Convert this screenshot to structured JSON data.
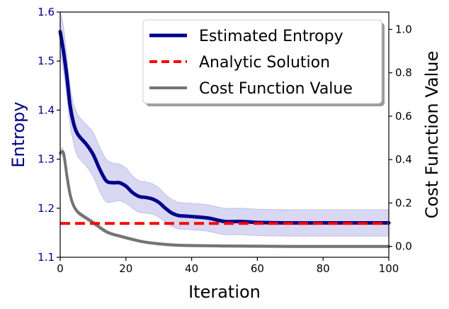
{
  "chart_data": {
    "type": "line",
    "xlabel": "Iteration",
    "ylabel_left": "Entropy",
    "ylabel_right": "Cost Function Value",
    "xlim": [
      0,
      100
    ],
    "ylim_left": [
      1.1,
      1.6
    ],
    "ylim_right": [
      -0.05,
      1.08
    ],
    "x_ticks": [
      0,
      20,
      40,
      60,
      80,
      100
    ],
    "y_left_ticks": [
      1.1,
      1.2,
      1.3,
      1.4,
      1.5,
      1.6
    ],
    "y_right_ticks": [
      0.0,
      0.2,
      0.4,
      0.6,
      0.8,
      1.0
    ],
    "legend_location": "top-right",
    "colors": {
      "entropy": "#00008b",
      "entropy_band": "#c8c8ee",
      "analytic": "#ff0000",
      "cost": "#737373",
      "cost_band": "#d0d0d0",
      "left_axis_text": "#00008b"
    },
    "series": [
      {
        "name": "Estimated Entropy",
        "axis": "left",
        "style": "solid",
        "x": [
          0,
          1,
          2,
          3,
          4,
          5,
          6,
          8,
          10,
          12,
          14,
          16,
          18,
          20,
          22,
          24,
          26,
          28,
          30,
          32,
          34,
          36,
          38,
          40,
          45,
          50,
          55,
          60,
          70,
          80,
          90,
          100
        ],
        "values": [
          1.56,
          1.52,
          1.47,
          1.41,
          1.375,
          1.355,
          1.345,
          1.33,
          1.31,
          1.28,
          1.256,
          1.252,
          1.252,
          1.245,
          1.232,
          1.224,
          1.222,
          1.219,
          1.212,
          1.2,
          1.19,
          1.185,
          1.184,
          1.183,
          1.18,
          1.173,
          1.173,
          1.171,
          1.17,
          1.17,
          1.17,
          1.17
        ],
        "band_lower": [
          1.52,
          1.48,
          1.43,
          1.37,
          1.335,
          1.31,
          1.3,
          1.285,
          1.265,
          1.235,
          1.213,
          1.213,
          1.215,
          1.21,
          1.2,
          1.192,
          1.19,
          1.188,
          1.182,
          1.172,
          1.163,
          1.158,
          1.157,
          1.156,
          1.153,
          1.146,
          1.146,
          1.144,
          1.143,
          1.143,
          1.143,
          1.143
        ],
        "band_upper": [
          1.6,
          1.57,
          1.51,
          1.45,
          1.415,
          1.395,
          1.385,
          1.37,
          1.355,
          1.325,
          1.3,
          1.292,
          1.29,
          1.282,
          1.266,
          1.256,
          1.254,
          1.25,
          1.242,
          1.228,
          1.218,
          1.212,
          1.211,
          1.21,
          1.207,
          1.2,
          1.2,
          1.198,
          1.197,
          1.197,
          1.197,
          1.197
        ]
      },
      {
        "name": "Analytic Solution",
        "axis": "left",
        "style": "dashed",
        "x": [
          0,
          100
        ],
        "values": [
          1.169,
          1.169
        ]
      },
      {
        "name": "Cost Function Value",
        "axis": "right",
        "style": "solid",
        "x": [
          0,
          1,
          2,
          3,
          4,
          5,
          6,
          8,
          10,
          12,
          14,
          16,
          18,
          20,
          25,
          30,
          35,
          40,
          50,
          60,
          70,
          80,
          100
        ],
        "values": [
          0.43,
          0.43,
          0.33,
          0.24,
          0.19,
          0.165,
          0.15,
          0.13,
          0.11,
          0.088,
          0.068,
          0.056,
          0.048,
          0.04,
          0.022,
          0.012,
          0.006,
          0.004,
          0.002,
          0.001,
          0.0,
          0.0,
          0.0
        ],
        "band_lower": [
          0.41,
          0.41,
          0.31,
          0.225,
          0.175,
          0.152,
          0.138,
          0.118,
          0.098,
          0.077,
          0.058,
          0.047,
          0.039,
          0.031,
          0.014,
          0.004,
          -0.002,
          -0.004,
          -0.006,
          -0.007,
          -0.008,
          -0.008,
          -0.008
        ],
        "band_upper": [
          0.45,
          0.45,
          0.35,
          0.255,
          0.205,
          0.178,
          0.162,
          0.142,
          0.122,
          0.099,
          0.078,
          0.065,
          0.057,
          0.049,
          0.03,
          0.02,
          0.014,
          0.012,
          0.01,
          0.009,
          0.008,
          0.008,
          0.008
        ]
      }
    ]
  }
}
